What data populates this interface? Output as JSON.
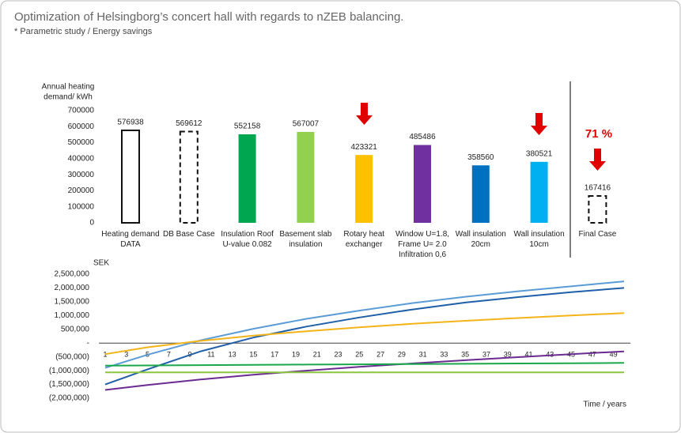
{
  "title": "Optimization of Helsingborg’s concert hall with regards to nZEB balancing.",
  "subtitle": "* Parametric study / Energy savings",
  "chart_data": [
    {
      "type": "bar",
      "ylabel": [
        "Annual heating",
        "demand/ kWh"
      ],
      "categories": [
        [
          "Heating demand",
          "DATA"
        ],
        [
          "DB Base Case"
        ],
        [
          "Insulation Roof",
          "U-value 0.082"
        ],
        [
          "Basement slab",
          "insulation"
        ],
        [
          "Rotary heat",
          "exchanger"
        ],
        [
          "Window U=1.8,",
          "Frame U= 2.0",
          "Infiltration 0,6"
        ],
        [
          "Wall insulation",
          "20cm"
        ],
        [
          "Wall insulation",
          "10cm"
        ],
        [
          "Final Case"
        ]
      ],
      "values": [
        576938,
        569612,
        552158,
        567007,
        423321,
        485486,
        358560,
        380521,
        167416
      ],
      "colors": [
        "#ffffff",
        "#ffffff",
        "#00a650",
        "#92d050",
        "#ffc000",
        "#7030a0",
        "#0070c0",
        "#00b0f0",
        "#ffffff"
      ],
      "outline": [
        "solid",
        "dashed",
        "none",
        "none",
        "none",
        "none",
        "none",
        "none",
        "dashed"
      ],
      "ylim": [
        0,
        700000
      ],
      "yticks": [
        0,
        100000,
        200000,
        300000,
        400000,
        500000,
        600000,
        700000
      ],
      "annotation": "71 %"
    },
    {
      "type": "line",
      "ylabel": "SEK",
      "xlabel": "Time / years",
      "x": [
        1,
        5,
        10,
        15,
        20,
        25,
        30,
        35,
        40,
        45,
        50
      ],
      "xlim": [
        1,
        50
      ],
      "xticks": [
        1,
        3,
        5,
        7,
        9,
        11,
        13,
        15,
        17,
        19,
        21,
        23,
        25,
        27,
        29,
        31,
        33,
        35,
        37,
        39,
        41,
        43,
        45,
        47,
        49
      ],
      "ylim": [
        -2000000,
        2500000
      ],
      "yticks": [
        {
          "value": -2000000,
          "label": "(2,000,000)"
        },
        {
          "value": -1500000,
          "label": "(1,500,000)"
        },
        {
          "value": -1000000,
          "label": "(1,000,000)"
        },
        {
          "value": -500000,
          "label": "(500,000)"
        },
        {
          "value": 0,
          "label": "-"
        },
        {
          "value": 500000,
          "label": "500,000"
        },
        {
          "value": 1000000,
          "label": "1,000,000"
        },
        {
          "value": 1500000,
          "label": "1,500,000"
        },
        {
          "value": 2000000,
          "label": "2,000,000"
        },
        {
          "value": 2500000,
          "label": "2,500,000"
        }
      ],
      "series": [
        {
          "color": "#5b9bd5",
          "values": [
            -900000,
            -420000,
            100000,
            520000,
            880000,
            1180000,
            1450000,
            1680000,
            1880000,
            2060000,
            2240000
          ]
        },
        {
          "color": "#1f5fa8",
          "values": [
            -1500000,
            -950000,
            -300000,
            200000,
            600000,
            930000,
            1220000,
            1470000,
            1670000,
            1850000,
            2000000
          ]
        },
        {
          "color": "#f2b418",
          "values": [
            -400000,
            -150000,
            80000,
            270000,
            430000,
            570000,
            700000,
            810000,
            910000,
            1000000,
            1090000
          ]
        },
        {
          "color": "#6a2c91",
          "values": [
            -1700000,
            -1520000,
            -1320000,
            -1150000,
            -1000000,
            -860000,
            -740000,
            -620000,
            -510000,
            -400000,
            -300000
          ]
        },
        {
          "color": "#1aa84a",
          "values": [
            -820000,
            -810000,
            -800000,
            -790000,
            -780000,
            -770000,
            -760000,
            -750000,
            -740000,
            -730000,
            -720000
          ]
        },
        {
          "color": "#8cc63f",
          "values": [
            -1060000,
            -1060000,
            -1060000,
            -1060000,
            -1060000,
            -1060000,
            -1060000,
            -1060000,
            -1060000,
            -1060000,
            -1060000
          ]
        }
      ]
    }
  ]
}
